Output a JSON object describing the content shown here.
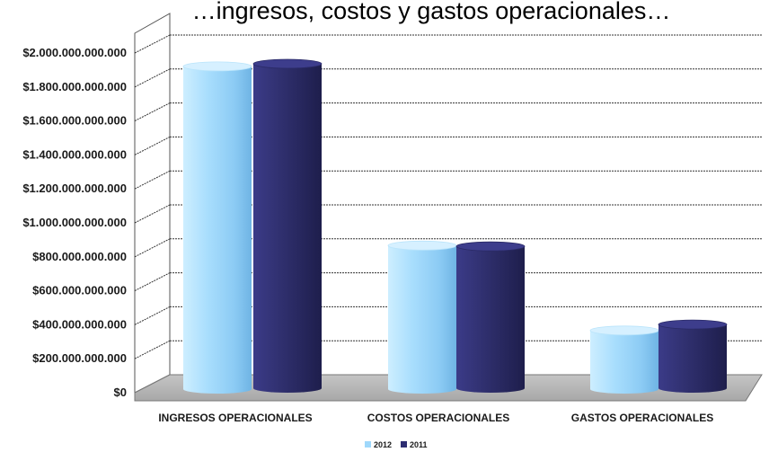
{
  "chart_data": {
    "type": "bar",
    "title": "…ingresos, costos y gastos operacionales…",
    "categories": [
      "INGRESOS OPERACIONALES",
      "COSTOS OPERACIONALES",
      "GASTOS OPERACIONALES"
    ],
    "series": [
      {
        "name": "2012",
        "values": [
          1900000000000,
          845000000000,
          345000000000
        ],
        "color": "#9fd8fb"
      },
      {
        "name": "2011",
        "values": [
          1910000000000,
          835000000000,
          375000000000
        ],
        "color": "#2e2e72"
      }
    ],
    "ylim": [
      0,
      2000000000000
    ],
    "yticks": [
      "$0",
      "$200.000.000.000",
      "$400.000.000.000",
      "$600.000.000.000",
      "$800.000.000.000",
      "$1.000.000.000.000",
      "$1.200.000.000.000",
      "$1.400.000.000.000",
      "$1.600.000.000.000",
      "$1.800.000.000.000",
      "$2.000.000.000.000"
    ],
    "xlabel": "",
    "ylabel": "",
    "grid": true,
    "legend_position": "bottom-center",
    "style": "3d-cylinder"
  }
}
